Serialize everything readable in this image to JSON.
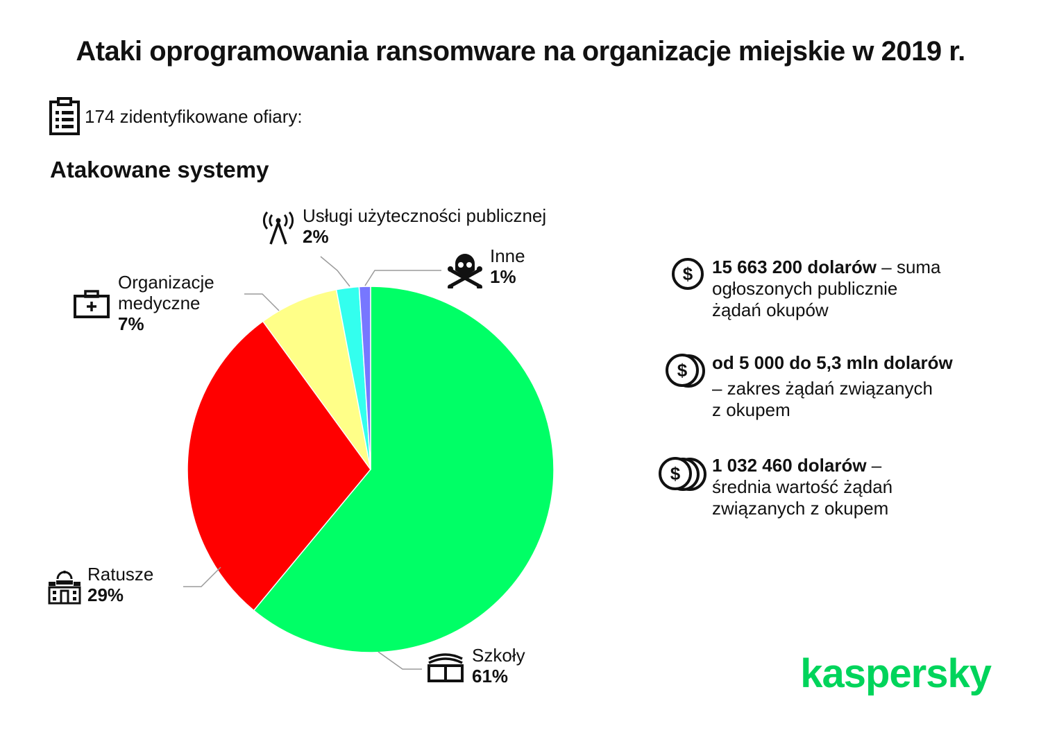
{
  "header": {
    "title": "Ataki oprogramowania ransomware na organizacje miejskie w 2019 r.",
    "victims_text": "174 zidentyfikowane ofiary:",
    "subtitle": "Atakowane systemy"
  },
  "chart_data": {
    "type": "pie",
    "start": "top, clockwise",
    "slices": [
      {
        "label": "Szkoły",
        "value": 61,
        "display": "61%",
        "color": "#00ff66",
        "icon": "book-icon"
      },
      {
        "label": "Ratusze",
        "value": 29,
        "display": "29%",
        "color": "#ff0000",
        "icon": "city-hall-icon"
      },
      {
        "label": "Organizacje medyczne",
        "value": 7,
        "display": "7%",
        "color": "#ffff88",
        "icon": "medical-kit-icon"
      },
      {
        "label": "Usługi użyteczności publicznej",
        "value": 2,
        "display": "2%",
        "color": "#33ffee",
        "icon": "antenna-icon"
      },
      {
        "label": "Inne",
        "value": 1,
        "display": "1%",
        "color": "#7777ff",
        "icon": "skull-icon"
      }
    ]
  },
  "labels": {
    "szkoly": {
      "name": "Szkoły",
      "pct": "61%"
    },
    "ratusze": {
      "name": "Ratusze",
      "pct": "29%"
    },
    "medyczne": {
      "name1": "Organizacje",
      "name2": "medyczne",
      "pct": "7%"
    },
    "uslugi": {
      "name": "Usługi użyteczności publicznej",
      "pct": "2%"
    },
    "inne": {
      "name": "Inne",
      "pct": "1%"
    }
  },
  "stats": [
    {
      "bold": "15 663 200 dolarów",
      "rest1": " – suma",
      "rest2": "ogłoszonych publicznie",
      "rest3": "żądań okupów",
      "icon": "dollar-coin-icon"
    },
    {
      "bold": "od 5 000 do 5,3 mln dolarów",
      "rest1": "– zakres żądań związanych",
      "rest2": "z okupem",
      "icon": "dollar-coins-two-icon"
    },
    {
      "bold": "1 032 460 dolarów",
      "rest1": " –",
      "rest2": "średnia wartość żądań",
      "rest3": "związanych z okupem",
      "icon": "dollar-coins-three-icon"
    }
  ],
  "brand": {
    "name": "kaspersky",
    "color": "#00d45b"
  }
}
